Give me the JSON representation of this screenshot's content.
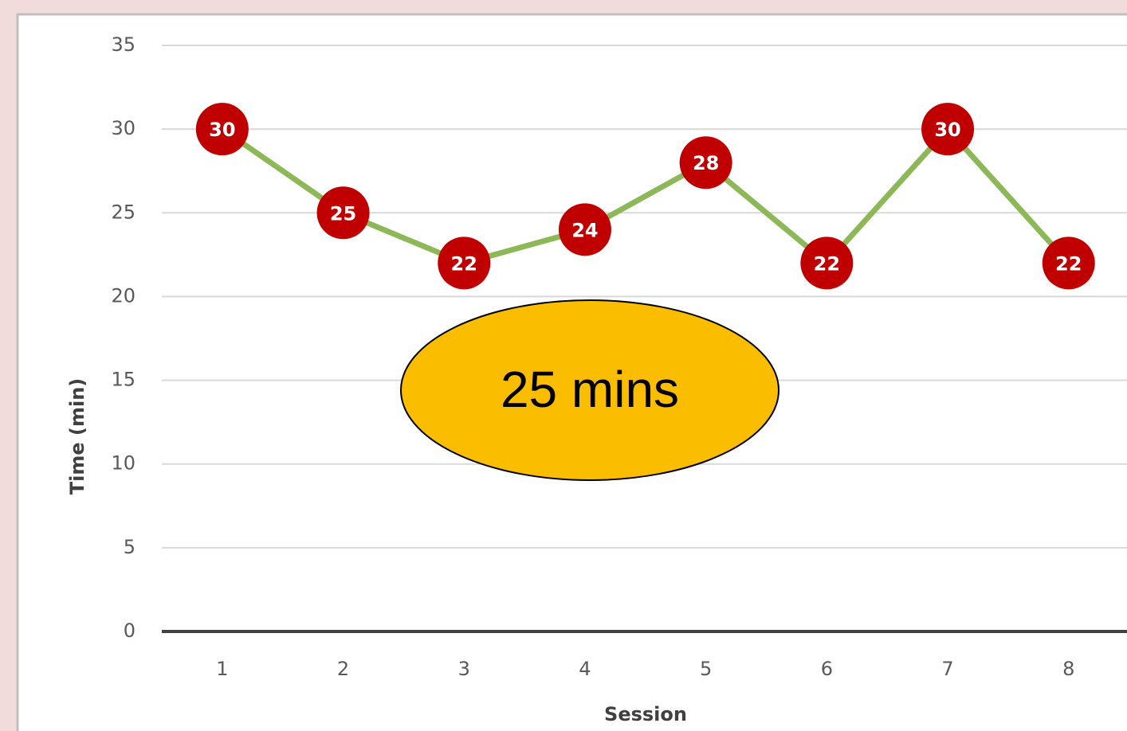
{
  "chart_data": {
    "type": "line",
    "categories": [
      "1",
      "2",
      "3",
      "4",
      "5",
      "6",
      "7",
      "8"
    ],
    "series": [
      {
        "name": "Time",
        "color": "#8db858",
        "marker_color": "#c00000",
        "values": [
          30,
          25,
          22,
          24,
          28,
          22,
          30,
          22
        ]
      }
    ],
    "ylim": [
      0,
      35
    ],
    "yticks": [
      0,
      5,
      10,
      15,
      20,
      25,
      30,
      35
    ],
    "grid": true,
    "y_label": "Time (min)",
    "x_label": "Session",
    "annotation": "25 mins"
  }
}
